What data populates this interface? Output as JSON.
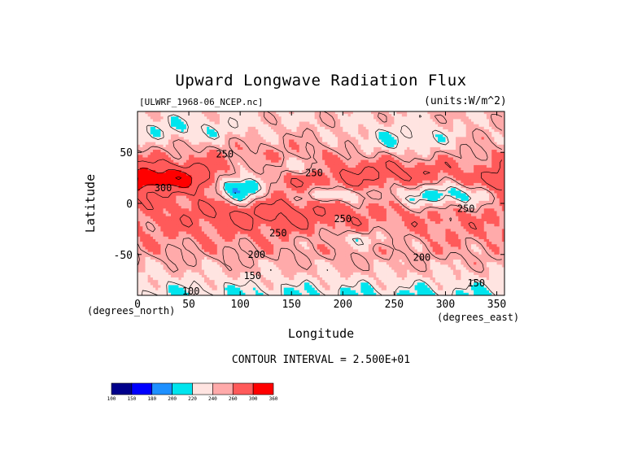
{
  "chart_data": {
    "type": "heatmap",
    "title": "Upward Longwave Radiation Flux",
    "source_label": "[ULWRF_1968-06_NCEP.nc]",
    "units_label": "(units:W/m^2)",
    "xlabel": "Longitude",
    "ylabel": "Latitude",
    "x_unit_label": "(degrees_east)",
    "y_unit_label": "(degrees_north)",
    "xlim": [
      0,
      357.5
    ],
    "ylim": [
      -90,
      90
    ],
    "x_ticks": [
      0,
      50,
      100,
      150,
      200,
      250,
      300,
      350
    ],
    "y_ticks": [
      -50,
      0,
      50
    ],
    "contour_interval_text": "CONTOUR INTERVAL = 2.500E+01",
    "color_levels": [
      100,
      150,
      180,
      200,
      220,
      240,
      260,
      300,
      360
    ],
    "colors": [
      "#00008b",
      "#0000ff",
      "#1e90ff",
      "#00e5ee",
      "#ffe4e1",
      "#ffaaaa",
      "#ff5a5a",
      "#ff0000"
    ],
    "colorbar_labels": [
      "100",
      "150",
      "180",
      "200",
      "220",
      "240",
      "260",
      "300",
      "360"
    ],
    "contour_labels": [
      {
        "text": "250",
        "lon": 85,
        "lat": 48
      },
      {
        "text": "250",
        "lon": 172,
        "lat": 30
      },
      {
        "text": "300",
        "lon": 25,
        "lat": 15
      },
      {
        "text": "250",
        "lon": 200,
        "lat": -15
      },
      {
        "text": "250",
        "lon": 137,
        "lat": -29
      },
      {
        "text": "250",
        "lon": 320,
        "lat": -5
      },
      {
        "text": "200",
        "lon": 116,
        "lat": -50
      },
      {
        "text": "200",
        "lon": 277,
        "lat": -53
      },
      {
        "text": "150",
        "lon": 112,
        "lat": -71
      },
      {
        "text": "150",
        "lon": 330,
        "lat": -78
      },
      {
        "text": "100",
        "lon": 52,
        "lat": -86
      }
    ]
  }
}
